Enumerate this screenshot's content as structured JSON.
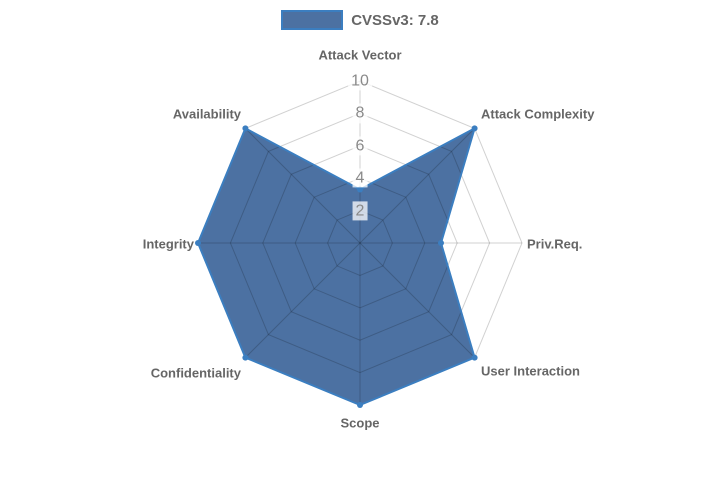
{
  "legend": {
    "label": "CVSSv3: 7.8",
    "swatch_fill": "rgba(31,78,139,0.8)",
    "swatch_border": "#3b7ec0"
  },
  "chart_data": {
    "type": "radar",
    "categories": [
      "Attack Vector",
      "Attack Complexity",
      "Priv.Req.",
      "User Interaction",
      "Scope",
      "Confidentiality",
      "Integrity",
      "Availability"
    ],
    "series": [
      {
        "name": "CVSSv3: 7.8",
        "values": [
          3.3,
          10,
          5,
          10,
          10,
          10,
          10,
          10
        ]
      }
    ],
    "rlim": [
      0,
      10
    ],
    "ticks": [
      2,
      4,
      6,
      8,
      10
    ],
    "grid": true,
    "grid_shape": "polygon",
    "legend_position": "top",
    "colors": {
      "fill": "rgba(31,78,139,0.8)",
      "border": "#3b7ec0",
      "point": "#3b7ec0",
      "grid": "rgba(0,0,0,0.18)",
      "axis_label": "#666666",
      "tick_label": "#8a8a8a",
      "tick_backdrop": "rgba(255,255,255,0.75)"
    }
  }
}
